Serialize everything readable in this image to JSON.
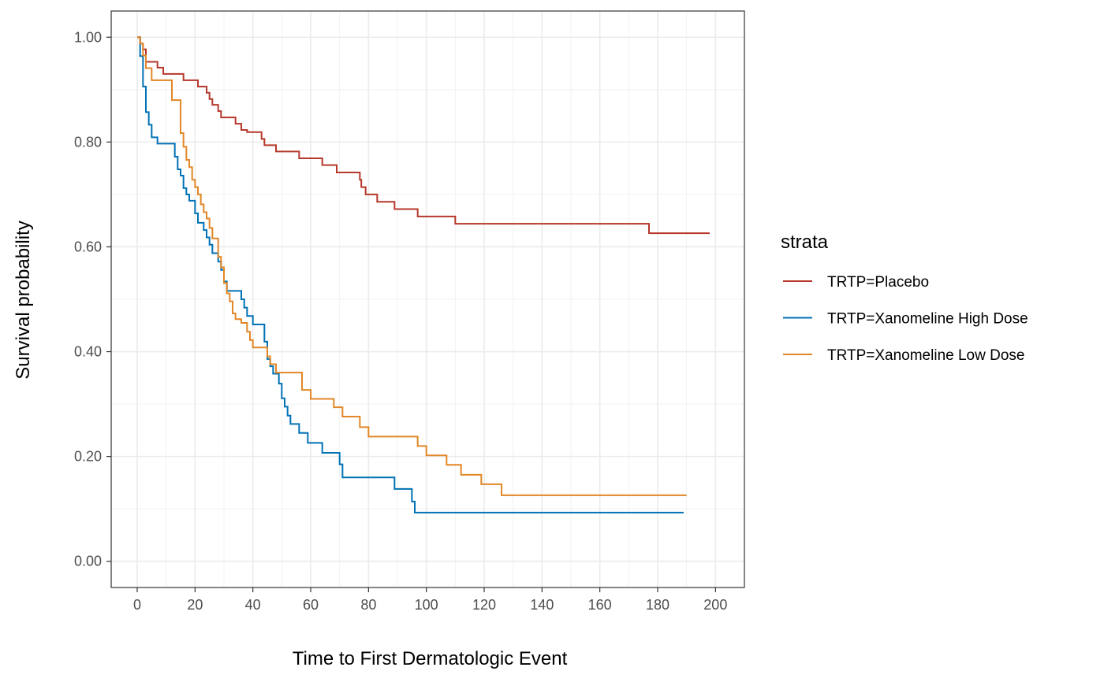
{
  "chart_data": {
    "type": "line",
    "step": true,
    "xlabel": "Time to First Dermatologic Event",
    "ylabel": "Survival probability",
    "xlim": [
      -9,
      210
    ],
    "ylim": [
      -0.05,
      1.05
    ],
    "xticks": [
      0,
      20,
      40,
      60,
      80,
      100,
      120,
      140,
      160,
      180,
      200
    ],
    "xtick_labels": [
      "0",
      "20",
      "40",
      "60",
      "80",
      "100",
      "120",
      "140",
      "160",
      "180",
      "200"
    ],
    "yticks": [
      0,
      0.2,
      0.4,
      0.6,
      0.8,
      1.0
    ],
    "ytick_labels": [
      "0.00",
      "0.20",
      "0.40",
      "0.60",
      "0.80",
      "1.00"
    ],
    "grid": true,
    "legend": {
      "title": "strata",
      "position": "right"
    },
    "series": [
      {
        "name": "TRTP=Placebo",
        "color": "#B5382B",
        "points": [
          [
            0,
            1.0
          ],
          [
            1,
            0.988
          ],
          [
            2,
            0.977
          ],
          [
            3,
            0.953
          ],
          [
            7,
            0.942
          ],
          [
            9,
            0.93
          ],
          [
            16,
            0.918
          ],
          [
            21,
            0.906
          ],
          [
            24,
            0.894
          ],
          [
            25,
            0.882
          ],
          [
            26,
            0.871
          ],
          [
            28,
            0.859
          ],
          [
            29,
            0.847
          ],
          [
            34,
            0.835
          ],
          [
            36,
            0.823
          ],
          [
            38,
            0.819
          ],
          [
            43,
            0.806
          ],
          [
            44,
            0.794
          ],
          [
            48,
            0.782
          ],
          [
            54,
            0.782
          ],
          [
            56,
            0.769
          ],
          [
            64,
            0.756
          ],
          [
            69,
            0.742
          ],
          [
            77,
            0.728
          ],
          [
            77.5,
            0.714
          ],
          [
            79,
            0.7
          ],
          [
            83,
            0.686
          ],
          [
            89,
            0.672
          ],
          [
            97,
            0.658
          ],
          [
            110,
            0.644
          ],
          [
            177,
            0.626
          ],
          [
            198,
            0.626
          ]
        ]
      },
      {
        "name": "TRTP=Xanomeline High Dose",
        "color": "#0072B5",
        "points": [
          [
            0,
            1.0
          ],
          [
            1,
            0.964
          ],
          [
            2,
            0.906
          ],
          [
            3,
            0.857
          ],
          [
            4,
            0.833
          ],
          [
            5,
            0.809
          ],
          [
            7,
            0.797
          ],
          [
            13,
            0.772
          ],
          [
            14,
            0.748
          ],
          [
            15,
            0.736
          ],
          [
            16,
            0.712
          ],
          [
            17,
            0.7
          ],
          [
            18,
            0.688
          ],
          [
            20,
            0.664
          ],
          [
            21,
            0.646
          ],
          [
            23,
            0.632
          ],
          [
            24,
            0.618
          ],
          [
            25,
            0.604
          ],
          [
            26,
            0.588
          ],
          [
            28,
            0.572
          ],
          [
            29,
            0.556
          ],
          [
            30,
            0.534
          ],
          [
            31,
            0.516
          ],
          [
            36,
            0.5
          ],
          [
            37,
            0.484
          ],
          [
            38,
            0.468
          ],
          [
            40,
            0.452
          ],
          [
            44,
            0.419
          ],
          [
            45,
            0.386
          ],
          [
            46,
            0.372
          ],
          [
            47,
            0.358
          ],
          [
            49,
            0.339
          ],
          [
            50,
            0.311
          ],
          [
            51,
            0.295
          ],
          [
            52,
            0.278
          ],
          [
            53,
            0.262
          ],
          [
            56,
            0.245
          ],
          [
            59,
            0.226
          ],
          [
            64,
            0.207
          ],
          [
            70,
            0.185
          ],
          [
            71,
            0.16
          ],
          [
            89,
            0.138
          ],
          [
            95,
            0.114
          ],
          [
            96,
            0.093
          ],
          [
            189,
            0.093
          ]
        ]
      },
      {
        "name": "TRTP=Xanomeline Low Dose",
        "color": "#E18727",
        "points": [
          [
            0,
            1.0
          ],
          [
            1,
            0.988
          ],
          [
            2,
            0.965
          ],
          [
            3,
            0.941
          ],
          [
            5,
            0.918
          ],
          [
            12,
            0.88
          ],
          [
            15,
            0.817
          ],
          [
            16,
            0.791
          ],
          [
            17,
            0.766
          ],
          [
            18,
            0.752
          ],
          [
            19,
            0.728
          ],
          [
            20,
            0.714
          ],
          [
            21,
            0.7
          ],
          [
            22,
            0.681
          ],
          [
            23,
            0.666
          ],
          [
            24,
            0.654
          ],
          [
            25,
            0.636
          ],
          [
            26,
            0.616
          ],
          [
            28,
            0.581
          ],
          [
            29,
            0.561
          ],
          [
            30,
            0.531
          ],
          [
            31,
            0.511
          ],
          [
            32,
            0.496
          ],
          [
            33,
            0.473
          ],
          [
            34,
            0.462
          ],
          [
            36,
            0.455
          ],
          [
            38,
            0.438
          ],
          [
            39,
            0.422
          ],
          [
            40,
            0.408
          ],
          [
            45,
            0.391
          ],
          [
            46,
            0.376
          ],
          [
            48,
            0.36
          ],
          [
            57,
            0.327
          ],
          [
            60,
            0.31
          ],
          [
            68,
            0.294
          ],
          [
            71,
            0.276
          ],
          [
            77,
            0.256
          ],
          [
            80,
            0.238
          ],
          [
            97,
            0.22
          ],
          [
            100,
            0.202
          ],
          [
            107,
            0.184
          ],
          [
            112,
            0.165
          ],
          [
            119,
            0.147
          ],
          [
            126,
            0.126
          ],
          [
            190,
            0.126
          ]
        ]
      }
    ]
  }
}
